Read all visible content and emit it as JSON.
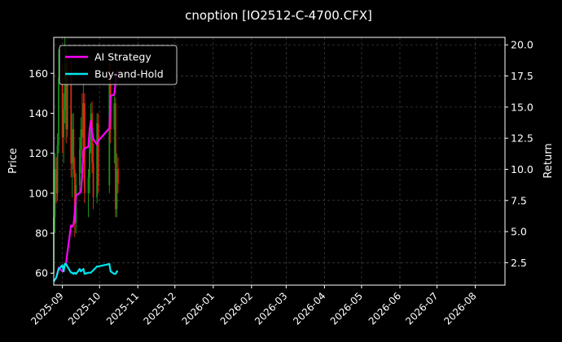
{
  "chart_data": {
    "type": "candlestick+line",
    "title": "cnoption [IO2512-C-4700.CFX]",
    "ylabel_left": "Price",
    "ylabel_right": "Return",
    "xlim": [
      "2025-08-25",
      "2026-08-25"
    ],
    "ylim_left": [
      54,
      178
    ],
    "ylim_right": [
      0.7,
      20.6
    ],
    "x_ticks": [
      "2025-09",
      "2025-10",
      "2025-11",
      "2025-12",
      "2026-01",
      "2026-02",
      "2026-03",
      "2026-04",
      "2026-05",
      "2026-06",
      "2026-07",
      "2026-08"
    ],
    "x_tick_dates": [
      "2025-09-01",
      "2025-10-01",
      "2025-11-01",
      "2025-12-01",
      "2026-01-01",
      "2026-02-01",
      "2026-03-01",
      "2026-04-01",
      "2026-05-01",
      "2026-06-01",
      "2026-07-01",
      "2026-08-01"
    ],
    "y_ticks_left": [
      60,
      80,
      100,
      120,
      140,
      160
    ],
    "y_ticks_right": [
      2.5,
      5.0,
      7.5,
      10.0,
      12.5,
      15.0,
      17.5,
      20.0
    ],
    "grid": true,
    "legend_position": "top-left",
    "colors": {
      "up": "#1a8f1a",
      "down": "#d82a10",
      "strategy": "#ff00ff",
      "buyhold": "#00e5ee",
      "grid": "#444444",
      "axis": "#ffffff"
    },
    "candles": [
      {
        "date": "2025-08-25",
        "o": 60,
        "h": 95,
        "l": 58,
        "c": 88
      },
      {
        "date": "2025-08-26",
        "o": 88,
        "h": 120,
        "l": 80,
        "c": 112
      },
      {
        "date": "2025-08-27",
        "o": 112,
        "h": 118,
        "l": 95,
        "c": 100
      },
      {
        "date": "2025-08-28",
        "o": 100,
        "h": 130,
        "l": 96,
        "c": 124
      },
      {
        "date": "2025-08-29",
        "o": 124,
        "h": 172,
        "l": 120,
        "c": 158
      },
      {
        "date": "2025-09-01",
        "o": 158,
        "h": 165,
        "l": 120,
        "c": 128
      },
      {
        "date": "2025-09-02",
        "o": 128,
        "h": 150,
        "l": 115,
        "c": 142
      },
      {
        "date": "2025-09-03",
        "o": 142,
        "h": 178,
        "l": 135,
        "c": 165
      },
      {
        "date": "2025-09-04",
        "o": 165,
        "h": 172,
        "l": 125,
        "c": 132
      },
      {
        "date": "2025-09-05",
        "o": 132,
        "h": 165,
        "l": 128,
        "c": 158
      },
      {
        "date": "2025-09-08",
        "o": 158,
        "h": 166,
        "l": 108,
        "c": 115
      },
      {
        "date": "2025-09-09",
        "o": 115,
        "h": 140,
        "l": 98,
        "c": 132
      },
      {
        "date": "2025-09-10",
        "o": 132,
        "h": 140,
        "l": 108,
        "c": 112
      },
      {
        "date": "2025-09-11",
        "o": 112,
        "h": 118,
        "l": 78,
        "c": 85
      },
      {
        "date": "2025-09-12",
        "o": 85,
        "h": 110,
        "l": 80,
        "c": 104
      },
      {
        "date": "2025-09-15",
        "o": 104,
        "h": 128,
        "l": 100,
        "c": 122
      },
      {
        "date": "2025-09-16",
        "o": 122,
        "h": 138,
        "l": 110,
        "c": 132
      },
      {
        "date": "2025-09-17",
        "o": 132,
        "h": 150,
        "l": 118,
        "c": 128
      },
      {
        "date": "2025-09-18",
        "o": 128,
        "h": 155,
        "l": 115,
        "c": 145
      },
      {
        "date": "2025-09-19",
        "o": 145,
        "h": 150,
        "l": 95,
        "c": 100
      },
      {
        "date": "2025-09-22",
        "o": 100,
        "h": 112,
        "l": 88,
        "c": 108
      },
      {
        "date": "2025-09-23",
        "o": 108,
        "h": 130,
        "l": 100,
        "c": 126
      },
      {
        "date": "2025-09-24",
        "o": 126,
        "h": 145,
        "l": 120,
        "c": 140
      },
      {
        "date": "2025-09-25",
        "o": 140,
        "h": 146,
        "l": 110,
        "c": 115
      },
      {
        "date": "2025-09-26",
        "o": 115,
        "h": 125,
        "l": 92,
        "c": 98
      },
      {
        "date": "2025-09-29",
        "o": 98,
        "h": 140,
        "l": 95,
        "c": 135
      },
      {
        "date": "2025-09-30",
        "o": 135,
        "h": 140,
        "l": 100,
        "c": 104
      },
      {
        "date": "2025-10-09",
        "o": 104,
        "h": 165,
        "l": 100,
        "c": 158
      },
      {
        "date": "2025-10-10",
        "o": 158,
        "h": 165,
        "l": 125,
        "c": 132
      },
      {
        "date": "2025-10-13",
        "o": 132,
        "h": 152,
        "l": 115,
        "c": 145
      },
      {
        "date": "2025-10-14",
        "o": 145,
        "h": 148,
        "l": 88,
        "c": 92
      },
      {
        "date": "2025-10-15",
        "o": 92,
        "h": 120,
        "l": 88,
        "c": 112
      },
      {
        "date": "2025-10-16",
        "o": 112,
        "h": 118,
        "l": 100,
        "c": 105
      }
    ],
    "series": [
      {
        "name": "AI Strategy",
        "points": [
          [
            "2025-08-25",
            1.0
          ],
          [
            "2025-08-27",
            1.3
          ],
          [
            "2025-08-29",
            2.1
          ],
          [
            "2025-09-01",
            1.8
          ],
          [
            "2025-09-03",
            2.3
          ],
          [
            "2025-09-04",
            2.5
          ],
          [
            "2025-09-05",
            3.3
          ],
          [
            "2025-09-08",
            5.5
          ],
          [
            "2025-09-09",
            5.4
          ],
          [
            "2025-09-10",
            5.6
          ],
          [
            "2025-09-11",
            6.5
          ],
          [
            "2025-09-12",
            7.9
          ],
          [
            "2025-09-15",
            8.1
          ],
          [
            "2025-09-16",
            8.2
          ],
          [
            "2025-09-17",
            9.5
          ],
          [
            "2025-09-18",
            11.5
          ],
          [
            "2025-09-19",
            11.7
          ],
          [
            "2025-09-22",
            11.8
          ],
          [
            "2025-09-23",
            13.2
          ],
          [
            "2025-09-24",
            13.9
          ],
          [
            "2025-09-25",
            13.0
          ],
          [
            "2025-09-26",
            12.4
          ],
          [
            "2025-09-29",
            12.0
          ],
          [
            "2025-09-30",
            12.3
          ],
          [
            "2025-10-09",
            13.3
          ],
          [
            "2025-10-10",
            15.9
          ],
          [
            "2025-10-13",
            16.0
          ],
          [
            "2025-10-14",
            17.0
          ],
          [
            "2025-10-15",
            17.9
          ],
          [
            "2025-10-16",
            18.0
          ]
        ]
      },
      {
        "name": "Buy-and-Hold",
        "points": [
          [
            "2025-08-25",
            1.0
          ],
          [
            "2025-08-27",
            1.3
          ],
          [
            "2025-08-29",
            2.0
          ],
          [
            "2025-09-01",
            2.3
          ],
          [
            "2025-09-02",
            1.8
          ],
          [
            "2025-09-03",
            2.4
          ],
          [
            "2025-09-04",
            2.4
          ],
          [
            "2025-09-05",
            2.2
          ],
          [
            "2025-09-08",
            1.7
          ],
          [
            "2025-09-09",
            1.7
          ],
          [
            "2025-09-10",
            1.6
          ],
          [
            "2025-09-11",
            1.7
          ],
          [
            "2025-09-12",
            1.6
          ],
          [
            "2025-09-15",
            2.0
          ],
          [
            "2025-09-16",
            1.8
          ],
          [
            "2025-09-17",
            1.9
          ],
          [
            "2025-09-18",
            2.0
          ],
          [
            "2025-09-19",
            1.6
          ],
          [
            "2025-09-22",
            1.7
          ],
          [
            "2025-09-23",
            1.7
          ],
          [
            "2025-09-24",
            1.7
          ],
          [
            "2025-09-25",
            1.8
          ],
          [
            "2025-09-26",
            1.9
          ],
          [
            "2025-09-29",
            2.2
          ],
          [
            "2025-09-30",
            2.2
          ],
          [
            "2025-10-09",
            2.4
          ],
          [
            "2025-10-10",
            1.8
          ],
          [
            "2025-10-13",
            1.6
          ],
          [
            "2025-10-14",
            1.6
          ],
          [
            "2025-10-15",
            1.8
          ],
          [
            "2025-10-16",
            1.8
          ]
        ]
      }
    ]
  }
}
